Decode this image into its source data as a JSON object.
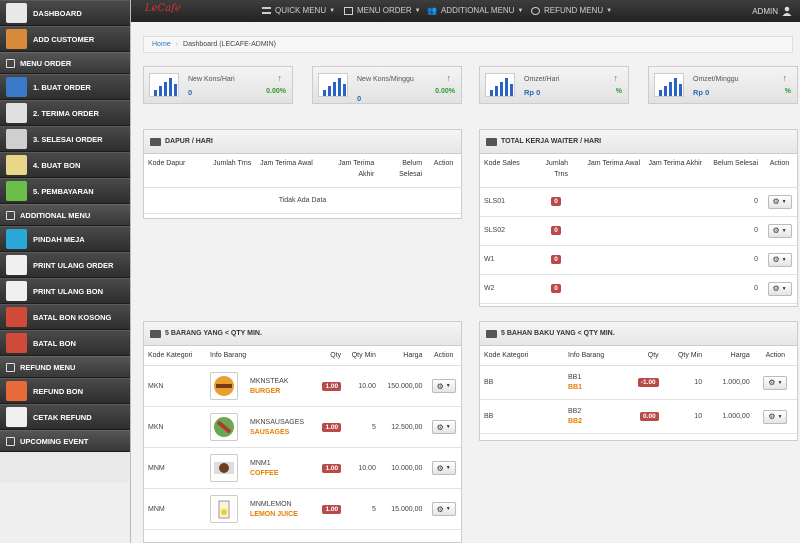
{
  "sidebar": {
    "items": [
      {
        "label": "DASHBOARD",
        "icon": "house-icon",
        "type": "item"
      },
      {
        "label": "ADD CUSTOMER",
        "icon": "user-icon",
        "type": "item"
      },
      {
        "label": "MENU ORDER",
        "icon": "edit-icon",
        "type": "head"
      },
      {
        "label": "1. BUAT ORDER",
        "icon": "pencil-icon",
        "type": "item"
      },
      {
        "label": "2. TERIMA ORDER",
        "icon": "checklist-icon",
        "type": "item"
      },
      {
        "label": "3. SELESAI ORDER",
        "icon": "plane-icon",
        "type": "item"
      },
      {
        "label": "4. BUAT BON",
        "icon": "receipt-icon",
        "type": "item"
      },
      {
        "label": "5. PEMBAYARAN",
        "icon": "money-icon",
        "type": "item"
      },
      {
        "label": "ADDITIONAL MENU",
        "icon": "users-icon",
        "type": "head"
      },
      {
        "label": "PINDAH MEJA",
        "icon": "arrows-icon",
        "type": "item"
      },
      {
        "label": "PRINT ULANG ORDER",
        "icon": "printer-icon",
        "type": "item"
      },
      {
        "label": "PRINT ULANG BON",
        "icon": "printer-icon",
        "type": "item"
      },
      {
        "label": "BATAL BON KOSONG",
        "icon": "clock-icon",
        "type": "item"
      },
      {
        "label": "BATAL BON",
        "icon": "clock-icon",
        "type": "item"
      },
      {
        "label": "REFUND MENU",
        "icon": "refund-icon",
        "type": "head"
      },
      {
        "label": "REFUND BON",
        "icon": "heart-money-icon",
        "type": "item"
      },
      {
        "label": "CETAK REFUND",
        "icon": "printer-icon",
        "type": "item"
      },
      {
        "label": "UPCOMING EVENT",
        "icon": "calendar-icon",
        "type": "head"
      }
    ]
  },
  "topbar": {
    "brand": "LeCafe",
    "menus": [
      "QUICK MENU",
      "MENU ORDER",
      "ADDITIONAL MENU",
      "REFUND MENU"
    ],
    "user": "ADMIN"
  },
  "breadcrumb": {
    "home": "Home",
    "current": "Dashboard (LECAFE-ADMIN)"
  },
  "stats": [
    {
      "label": "New Kons/Hari",
      "value": "0",
      "pct": "0.00%"
    },
    {
      "label": "New Kons/Minggu",
      "value": "0",
      "pct": "0.00%"
    },
    {
      "label": "Omzet/Hari",
      "value": "Rp 0",
      "pct": "%"
    },
    {
      "label": "Omzet/Minggu",
      "value": "Rp 0",
      "pct": "%"
    }
  ],
  "dapur": {
    "title": "DAPUR / HARI",
    "columns": [
      "Kode Dapur",
      "Jumlah Trns",
      "Jam Terima Awal",
      "Jam Terima Akhir",
      "Belum Selesai",
      "Action"
    ],
    "empty": "Tidak Ada Data"
  },
  "waiter": {
    "title": "TOTAL KERJA WAITER / HARI",
    "columns": [
      "Kode Sales",
      "Jumlah Trns",
      "Jam Terima Awal",
      "Jam Terima Akhir",
      "Belum Selesai",
      "Action"
    ],
    "rows": [
      {
        "kode": "SLS01",
        "jumlah": "0",
        "belum": "0"
      },
      {
        "kode": "SLS02",
        "jumlah": "0",
        "belum": "0"
      },
      {
        "kode": "W1",
        "jumlah": "0",
        "belum": "0"
      },
      {
        "kode": "W2",
        "jumlah": "0",
        "belum": "0"
      }
    ]
  },
  "barang": {
    "title": "5 BARANG YANG < QTY MIN.",
    "columns": [
      "Kode Kategori",
      "Info Barang",
      "Qty",
      "Qty Min",
      "Harga",
      "Action"
    ],
    "rows": [
      {
        "kategori": "MKN",
        "code": "MKNSTEAK",
        "name": "BURGER",
        "qty": "1.00",
        "qtymin": "10.00",
        "harga": "150.000,00",
        "thumb": "burger-icon"
      },
      {
        "kategori": "MKN",
        "code": "MKNSAUSAGES",
        "name": "SAUSAGES",
        "qty": "1.00",
        "qtymin": "5",
        "harga": "12.500,00",
        "thumb": "sausage-icon"
      },
      {
        "kategori": "MNM",
        "code": "MNM1",
        "name": "COFFEE",
        "qty": "1.00",
        "qtymin": "10.00",
        "harga": "10.000,00",
        "thumb": "coffee-icon"
      },
      {
        "kategori": "MNM",
        "code": "MNMLEMON",
        "name": "LEMON JUICE",
        "qty": "1.00",
        "qtymin": "5",
        "harga": "15.000,00",
        "thumb": "juice-icon"
      }
    ]
  },
  "bahan": {
    "title": "5 BAHAN BAKU YANG < QTY MIN.",
    "columns": [
      "Kode Kategori",
      "Info Barang",
      "Qty",
      "Qty Min",
      "Harga",
      "Action"
    ],
    "rows": [
      {
        "kategori": "BB",
        "code": "BB1",
        "name": "BB1",
        "qty": "-1.00",
        "qtymin": "10",
        "harga": "1.000,00"
      },
      {
        "kategori": "BB",
        "code": "BB2",
        "name": "BB2",
        "qty": "0.00",
        "qtymin": "10",
        "harga": "1.000,00"
      }
    ]
  },
  "colors": {
    "accent": "#2a7bbd",
    "badge": "#b94a48",
    "orange": "#e67e00",
    "up": "#2e9a2e"
  }
}
